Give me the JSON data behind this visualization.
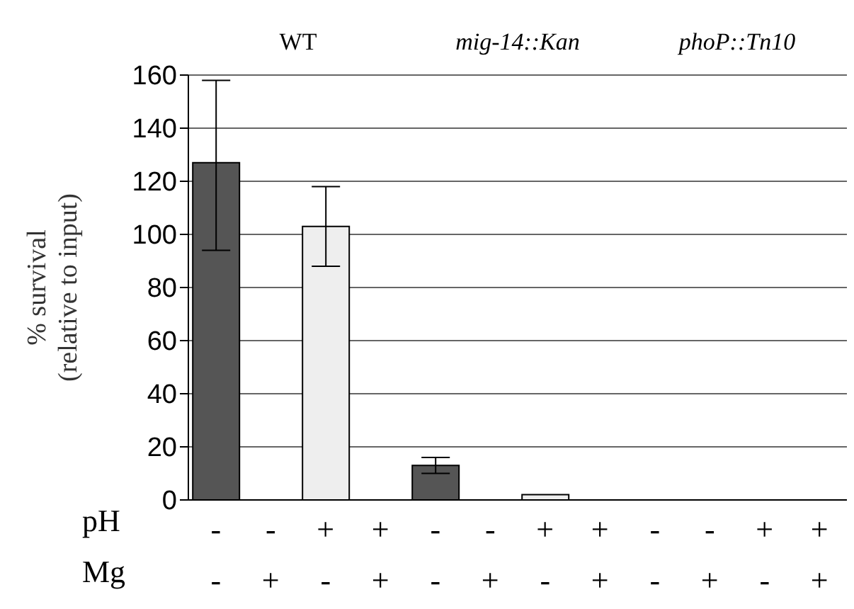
{
  "chart_data": {
    "type": "bar",
    "ylabel": "% survival\n(relative to input)",
    "xlabel": "pH\nMg",
    "categories": [
      "-\n-",
      "-\n+",
      "+\n-",
      "+\n+",
      "-\n-",
      "-\n+",
      "+\n-",
      "+\n+",
      "-\n-",
      "-\n+",
      "+\n-",
      "+\n+"
    ],
    "values": [
      127,
      0,
      103,
      0,
      13,
      0,
      2,
      0,
      0,
      0,
      0,
      0
    ],
    "colors": [
      "#555555",
      "#ffffff",
      "#eeeeee",
      "#bbbbbb",
      "#555555",
      "#ffffff",
      "#eeeeee",
      "#bbbbbb",
      "#555555",
      "#ffffff",
      "#eeeeee",
      "#bbbbbb"
    ],
    "errors": [
      [
        94,
        158
      ],
      null,
      [
        88,
        118
      ],
      null,
      [
        10,
        16
      ],
      null,
      null,
      null,
      null,
      null,
      null,
      null
    ],
    "annotations": [
      "WT",
      "mig-14::Kan",
      "phoP::Tn10"
    ],
    "ylim": [
      0,
      160
    ],
    "yticks": [
      0,
      20,
      40,
      60,
      80,
      100,
      120,
      140,
      160
    ],
    "grid": "y",
    "legend": false
  }
}
